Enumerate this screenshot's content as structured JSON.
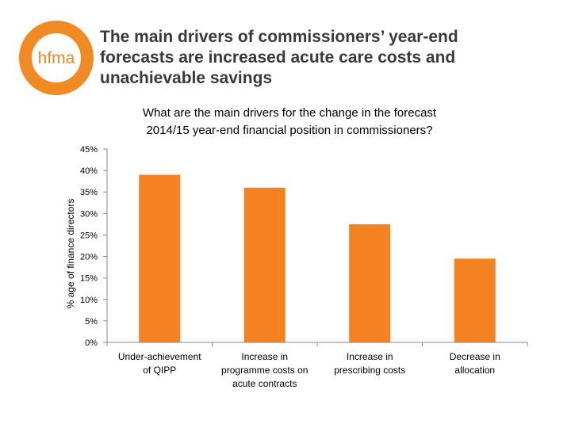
{
  "slide": {
    "logo_text": "hfma",
    "title_lines": [
      "The main drivers of commissioners’ year-end",
      "forecasts are increased acute care costs and",
      "unachievable savings"
    ]
  },
  "colors": {
    "brand_orange": "#F18A23",
    "bar_fill": "#F58220"
  },
  "chart_data": {
    "type": "bar",
    "title_lines": [
      "What are the main drivers for the change in the forecast",
      "2014/15 year-end financial position in commissioners?"
    ],
    "categories": [
      [
        "Under-achievement",
        "of QIPP"
      ],
      [
        "Increase in",
        "programme costs on",
        "acute contracts"
      ],
      [
        "Increase in",
        "prescribing costs"
      ],
      [
        "Decrease in",
        "allocation"
      ]
    ],
    "values": [
      39,
      36,
      27.5,
      19.5
    ],
    "ylabel": "% age of finance directors",
    "xlabel": "",
    "ylim": [
      0,
      45
    ],
    "yticks": [
      "0%",
      "5%",
      "10%",
      "15%",
      "20%",
      "25%",
      "30%",
      "35%",
      "40%",
      "45%"
    ],
    "grid": false
  }
}
